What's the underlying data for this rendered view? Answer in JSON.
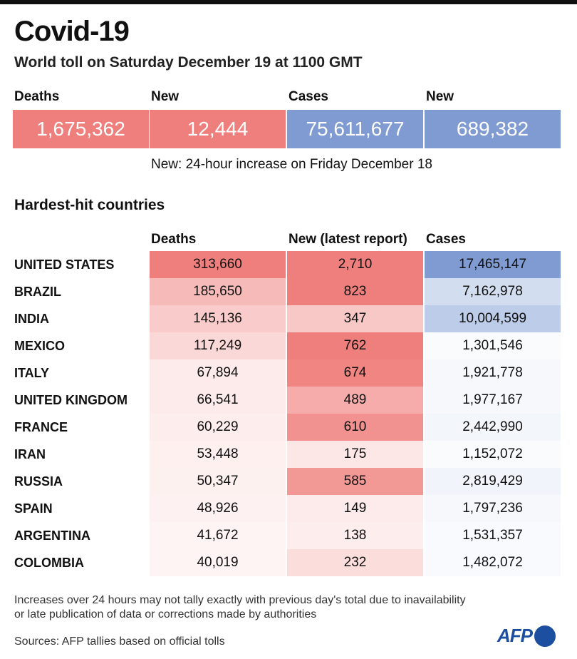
{
  "title": "Covid-19",
  "subtitle": "World toll on Saturday December 19 at 1100 GMT",
  "summary": [
    {
      "label": "Deaths",
      "value": "1,675,362",
      "color": "#ef7f7c"
    },
    {
      "label": "New",
      "value": "12,444",
      "color": "#ef7f7c"
    },
    {
      "label": "Cases",
      "value": "75,611,677",
      "color": "#7f9bd2"
    },
    {
      "label": "New",
      "value": "689,382",
      "color": "#7f9bd2"
    }
  ],
  "note": "New: 24-hour increase on Friday December 18",
  "section_title": "Hardest-hit countries",
  "chart_data": {
    "type": "table",
    "title": "Hardest-hit countries",
    "columns": [
      "Deaths",
      "New (latest report)",
      "Cases"
    ],
    "rows": [
      {
        "country": "UNITED STATES",
        "deaths": 313660,
        "new": 2710,
        "cases": 17465147
      },
      {
        "country": "BRAZIL",
        "deaths": 185650,
        "new": 823,
        "cases": 7162978
      },
      {
        "country": "INDIA",
        "deaths": 145136,
        "new": 347,
        "cases": 10004599
      },
      {
        "country": "MEXICO",
        "deaths": 117249,
        "new": 762,
        "cases": 1301546
      },
      {
        "country": "ITALY",
        "deaths": 67894,
        "new": 674,
        "cases": 1921778
      },
      {
        "country": "UNITED KINGDOM",
        "deaths": 66541,
        "new": 489,
        "cases": 1977167
      },
      {
        "country": "FRANCE",
        "deaths": 60229,
        "new": 610,
        "cases": 2442990
      },
      {
        "country": "IRAN",
        "deaths": 53448,
        "new": 175,
        "cases": 1152072
      },
      {
        "country": "RUSSIA",
        "deaths": 50347,
        "new": 585,
        "cases": 2819429
      },
      {
        "country": "SPAIN",
        "deaths": 48926,
        "new": 149,
        "cases": 1797236
      },
      {
        "country": "ARGENTINA",
        "deaths": 41672,
        "new": 138,
        "cases": 1531357
      },
      {
        "country": "COLOMBIA",
        "deaths": 40019,
        "new": 232,
        "cases": 1482072
      }
    ]
  },
  "footnote": "Increases over 24 hours may not tally exactly with previous day's total due to inavailability\nor late publication of data or corrections made by authorities",
  "sources": "Sources: AFP tallies based on official tolls",
  "logo": "AFP",
  "colors": {
    "red": "#ef7f7c",
    "blue": "#7f9bd2"
  }
}
